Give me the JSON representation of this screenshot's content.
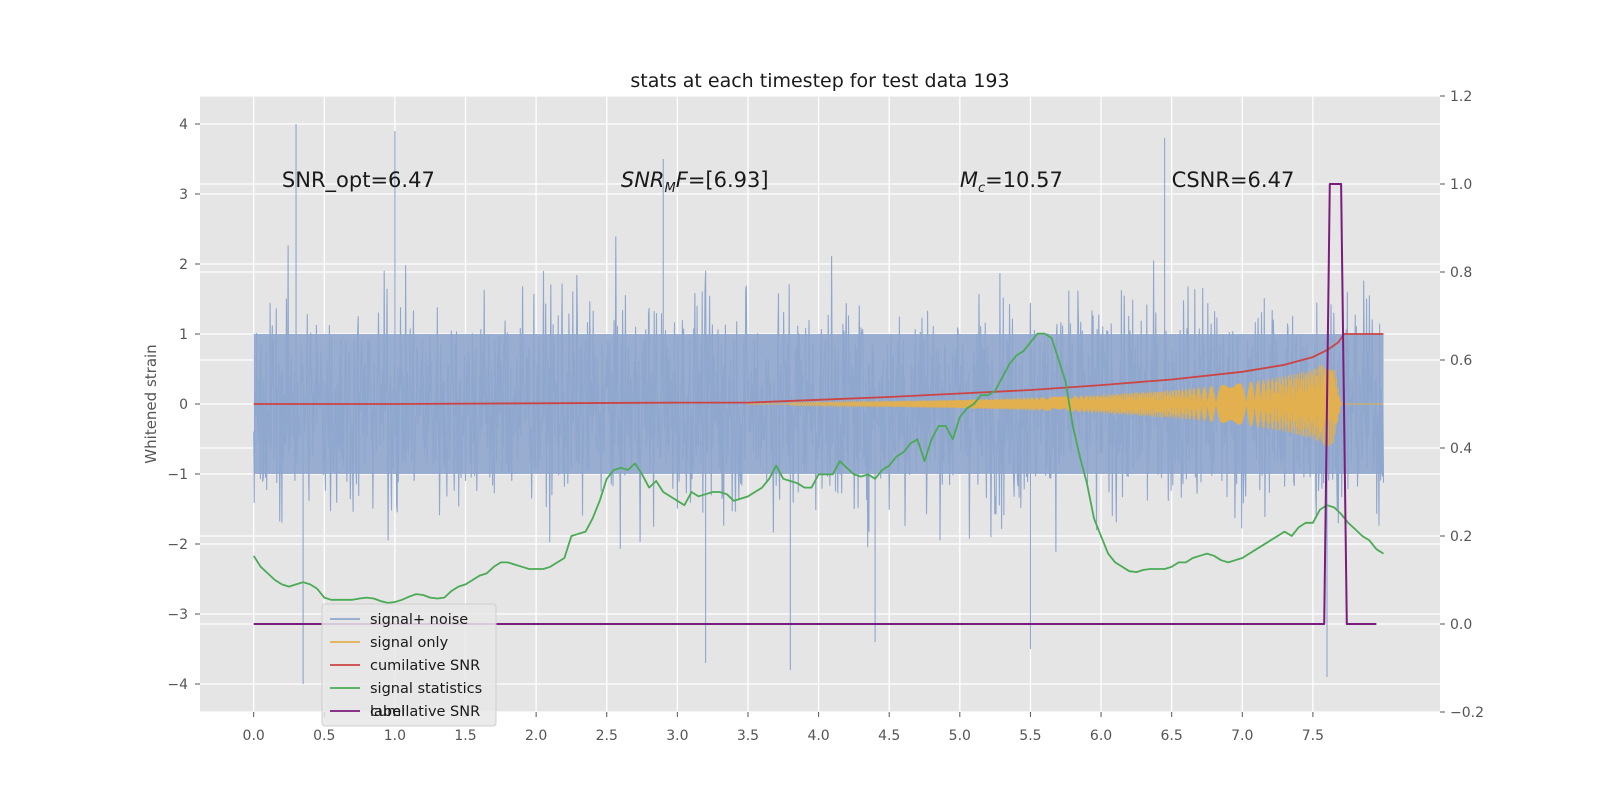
{
  "chart_data": {
    "type": "line",
    "title": "stats at each timestep for test data 193",
    "ylabel": "Whitened strain",
    "xlabel": "",
    "xlim": [
      -0.38,
      8.4
    ],
    "ylim": [
      -4.4,
      4.4
    ],
    "y2lim": [
      -0.2,
      1.2
    ],
    "grid": true,
    "legend_loc": "lower-left",
    "xticks": [
      "0.0",
      "0.5",
      "1.0",
      "1.5",
      "2.0",
      "2.5",
      "3.0",
      "3.5",
      "4.0",
      "4.5",
      "5.0",
      "5.5",
      "6.0",
      "6.5",
      "7.0",
      "7.5"
    ],
    "yticks": [
      "4",
      "3",
      "2",
      "1",
      "0",
      "−1",
      "−2",
      "−3",
      "−4"
    ],
    "y2ticks": [
      "1.2",
      "1.0",
      "0.8",
      "0.6",
      "0.4",
      "0.2",
      "0.0",
      "−0.2"
    ],
    "annotations": [
      {
        "text": "SNR_opt=6.47",
        "x": 0.2,
        "y": 3.2
      },
      {
        "text": "SNR_MF=[6.93]",
        "x": 2.6,
        "y": 3.2
      },
      {
        "text": "M_c=10.57",
        "x": 5.0,
        "y": 3.2
      },
      {
        "text": "CSNR=6.47",
        "x": 6.5,
        "y": 3.2
      }
    ],
    "legend": [
      "signal+ noise",
      "signal only",
      "cumilative SNR",
      "signal statistics",
      "label"
    ],
    "legend_hidden_text": "cumilative SNR",
    "colors": {
      "signal_noise": "#8fa6cd",
      "signal_only": "#e2b04e",
      "cumulative_snr": "#cc4444",
      "signal_statistics": "#4aaa55",
      "label": "#7b1b7d",
      "plot_bg": "#e5e5e5",
      "grid": "#ffffff"
    },
    "series": [
      {
        "name": "signal+ noise",
        "axis": "left",
        "x_range": [
          0.0,
          8.0
        ],
        "envelope_core": [
          -1.0,
          1.0
        ],
        "envelope_typical": [
          -2.5,
          2.5
        ],
        "extremes": [
          {
            "x": 0.3,
            "y": 4.0
          },
          {
            "x": 1.0,
            "y": 3.9
          },
          {
            "x": 2.9,
            "y": 3.5
          },
          {
            "x": 6.45,
            "y": 3.8
          },
          {
            "x": 0.35,
            "y": -4.0
          },
          {
            "x": 3.2,
            "y": -3.7
          },
          {
            "x": 3.8,
            "y": -3.8
          },
          {
            "x": 7.6,
            "y": -3.9
          },
          {
            "x": 5.5,
            "y": -3.5
          },
          {
            "x": 4.4,
            "y": -3.4
          }
        ]
      },
      {
        "name": "signal only",
        "axis": "left",
        "x": [
          3.8,
          4.5,
          5.0,
          5.5,
          6.0,
          6.5,
          7.0,
          7.3,
          7.5,
          7.6,
          7.65,
          7.7
        ],
        "amplitude": [
          0.02,
          0.04,
          0.06,
          0.09,
          0.13,
          0.2,
          0.3,
          0.4,
          0.5,
          0.62,
          0.55,
          0.0
        ]
      },
      {
        "name": "cumilative SNR",
        "axis": "left",
        "x": [
          0.0,
          1.0,
          2.0,
          3.0,
          3.5,
          4.0,
          4.5,
          5.0,
          5.5,
          6.0,
          6.5,
          7.0,
          7.3,
          7.5,
          7.6,
          7.68,
          7.72,
          8.0
        ],
        "y": [
          0.0,
          0.0,
          0.01,
          0.02,
          0.02,
          0.06,
          0.1,
          0.15,
          0.2,
          0.27,
          0.35,
          0.46,
          0.56,
          0.67,
          0.77,
          0.88,
          1.0,
          1.0
        ]
      },
      {
        "name": "signal statistics",
        "axis": "right",
        "x": [
          0.0,
          0.05,
          0.1,
          0.15,
          0.2,
          0.25,
          0.3,
          0.35,
          0.4,
          0.45,
          0.5,
          0.55,
          0.6,
          0.65,
          0.7,
          0.75,
          0.8,
          0.85,
          0.9,
          0.95,
          1.0,
          1.05,
          1.1,
          1.15,
          1.2,
          1.25,
          1.3,
          1.35,
          1.4,
          1.45,
          1.5,
          1.55,
          1.6,
          1.65,
          1.7,
          1.75,
          1.8,
          1.85,
          1.9,
          1.95,
          2.0,
          2.05,
          2.1,
          2.15,
          2.2,
          2.25,
          2.3,
          2.35,
          2.4,
          2.45,
          2.5,
          2.55,
          2.6,
          2.65,
          2.7,
          2.75,
          2.8,
          2.85,
          2.9,
          2.95,
          3.0,
          3.05,
          3.1,
          3.15,
          3.2,
          3.25,
          3.3,
          3.35,
          3.4,
          3.45,
          3.5,
          3.55,
          3.6,
          3.65,
          3.7,
          3.75,
          3.8,
          3.85,
          3.9,
          3.95,
          4.0,
          4.05,
          4.1,
          4.15,
          4.2,
          4.25,
          4.3,
          4.35,
          4.4,
          4.45,
          4.5,
          4.55,
          4.6,
          4.65,
          4.7,
          4.75,
          4.8,
          4.85,
          4.9,
          4.95,
          5.0,
          5.05,
          5.1,
          5.15,
          5.2,
          5.25,
          5.3,
          5.35,
          5.4,
          5.45,
          5.5,
          5.55,
          5.6,
          5.65,
          5.7,
          5.75,
          5.8,
          5.85,
          5.9,
          5.95,
          6.0,
          6.05,
          6.1,
          6.15,
          6.2,
          6.25,
          6.3,
          6.35,
          6.4,
          6.45,
          6.5,
          6.55,
          6.6,
          6.65,
          6.7,
          6.75,
          6.8,
          6.85,
          6.9,
          6.95,
          7.0,
          7.05,
          7.1,
          7.15,
          7.2,
          7.25,
          7.3,
          7.35,
          7.4,
          7.45,
          7.5,
          7.55,
          7.6,
          7.65,
          7.7,
          7.75,
          7.8,
          7.85,
          7.9,
          7.95,
          8.0
        ],
        "y": [
          0.155,
          0.13,
          0.115,
          0.1,
          0.09,
          0.085,
          0.09,
          0.095,
          0.09,
          0.08,
          0.06,
          0.055,
          0.055,
          0.055,
          0.055,
          0.058,
          0.06,
          0.058,
          0.052,
          0.048,
          0.05,
          0.055,
          0.062,
          0.068,
          0.066,
          0.06,
          0.058,
          0.06,
          0.075,
          0.085,
          0.09,
          0.1,
          0.11,
          0.115,
          0.13,
          0.14,
          0.14,
          0.135,
          0.13,
          0.125,
          0.125,
          0.125,
          0.13,
          0.14,
          0.15,
          0.2,
          0.205,
          0.21,
          0.24,
          0.28,
          0.33,
          0.35,
          0.355,
          0.35,
          0.365,
          0.34,
          0.31,
          0.325,
          0.3,
          0.29,
          0.28,
          0.27,
          0.3,
          0.29,
          0.295,
          0.3,
          0.3,
          0.295,
          0.28,
          0.285,
          0.29,
          0.3,
          0.31,
          0.33,
          0.36,
          0.33,
          0.325,
          0.32,
          0.31,
          0.31,
          0.34,
          0.34,
          0.34,
          0.37,
          0.355,
          0.34,
          0.335,
          0.34,
          0.33,
          0.35,
          0.36,
          0.38,
          0.39,
          0.41,
          0.42,
          0.37,
          0.42,
          0.45,
          0.45,
          0.42,
          0.47,
          0.49,
          0.5,
          0.52,
          0.52,
          0.53,
          0.56,
          0.59,
          0.61,
          0.62,
          0.64,
          0.66,
          0.66,
          0.65,
          0.6,
          0.55,
          0.45,
          0.38,
          0.32,
          0.24,
          0.2,
          0.16,
          0.14,
          0.13,
          0.12,
          0.118,
          0.123,
          0.125,
          0.125,
          0.125,
          0.13,
          0.14,
          0.14,
          0.15,
          0.155,
          0.16,
          0.155,
          0.145,
          0.14,
          0.145,
          0.15,
          0.16,
          0.17,
          0.18,
          0.19,
          0.2,
          0.21,
          0.2,
          0.22,
          0.23,
          0.23,
          0.26,
          0.27,
          0.265,
          0.25,
          0.23,
          0.215,
          0.2,
          0.19,
          0.17,
          0.16
        ]
      },
      {
        "name": "label",
        "axis": "right",
        "x": [
          0.0,
          7.58,
          7.62,
          7.7,
          7.74,
          7.95
        ],
        "y": [
          0.0,
          0.0,
          1.0,
          1.0,
          0.0,
          0.0
        ]
      }
    ]
  }
}
